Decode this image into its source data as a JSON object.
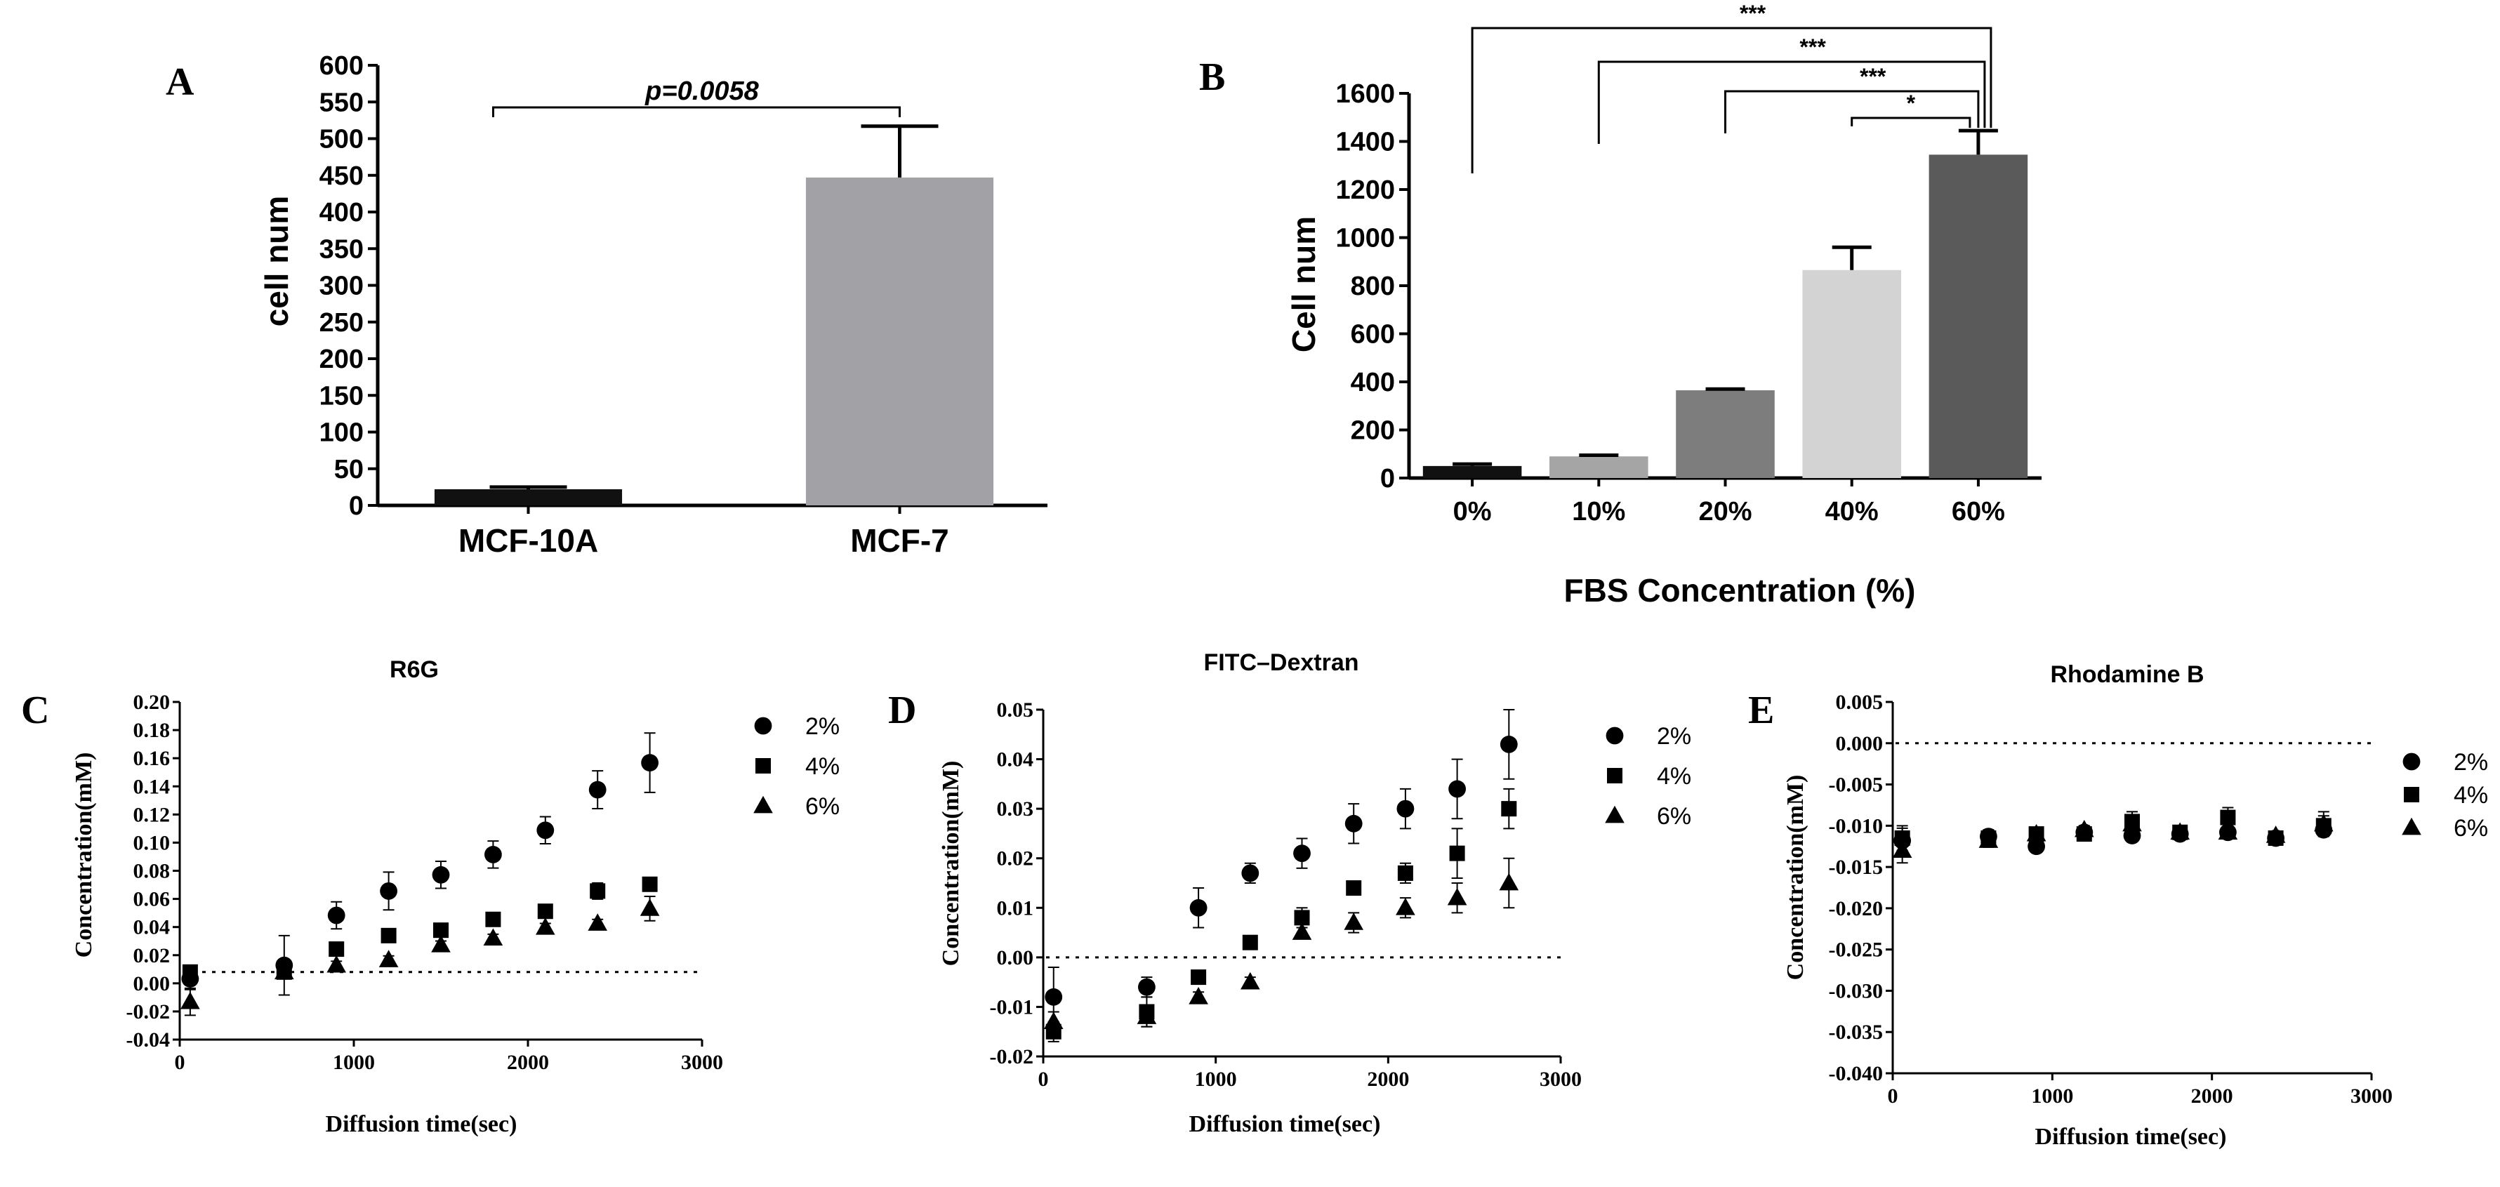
{
  "chart_data": [
    {
      "id": "A",
      "panel_label": "A",
      "type": "bar",
      "title": "",
      "xlabel": "",
      "ylabel": "cell num",
      "categories": [
        "MCF-10A",
        "MCF-7"
      ],
      "values": [
        22,
        447
      ],
      "errors": [
        3,
        70
      ],
      "colors": [
        "#111111",
        "#a2a1a6"
      ],
      "ylim": [
        0,
        600
      ],
      "yticks": [
        0,
        50,
        100,
        150,
        200,
        250,
        300,
        350,
        400,
        450,
        500,
        550,
        600
      ],
      "annotation": "p=0.0058"
    },
    {
      "id": "B",
      "panel_label": "B",
      "type": "bar",
      "title": "",
      "xlabel": "FBS Concentration (%)",
      "ylabel": "Cell num",
      "categories": [
        "0%",
        "10%",
        "20%",
        "40%",
        "60%"
      ],
      "values": [
        50,
        90,
        365,
        865,
        1345
      ],
      "errors": [
        8,
        5,
        5,
        95,
        100
      ],
      "colors": [
        "#111111",
        "#a5a5a5",
        "#7d7d7d",
        "#d3d3d3",
        "#5a5a5a"
      ],
      "ylim": [
        0,
        1600
      ],
      "yticks": [
        0,
        200,
        400,
        600,
        800,
        1000,
        1200,
        1400,
        1600
      ],
      "significance": [
        {
          "from": "0%",
          "to": "60%",
          "label": "***"
        },
        {
          "from": "10%",
          "to": "60%",
          "label": "***"
        },
        {
          "from": "20%",
          "to": "60%",
          "label": "***"
        },
        {
          "from": "40%",
          "to": "60%",
          "label": "*"
        }
      ]
    },
    {
      "id": "C",
      "panel_label": "C",
      "type": "scatter",
      "title": "R6G",
      "xlabel": "Diffusion time(sec)",
      "ylabel": "Concentration(mM)",
      "xlim": [
        0,
        3000
      ],
      "ylim": [
        -0.05,
        0.2
      ],
      "xticks": [
        0,
        1000,
        2000,
        3000
      ],
      "yticks": [
        "0.20",
        "0.18",
        "0.16",
        "0.14",
        "0.12",
        "0.10",
        "0.08",
        "0.06",
        "0.04",
        "0.02",
        "0.00",
        "-0.02",
        "-0.04"
      ],
      "x": [
        60,
        600,
        900,
        1200,
        1500,
        1800,
        2100,
        2400,
        2700
      ],
      "series": [
        {
          "name": "2%",
          "marker": "circle",
          "values": [
            -0.005,
            0.005,
            0.042,
            0.06,
            0.072,
            0.087,
            0.105,
            0.135,
            0.155
          ],
          "errors": [
            0.008,
            0.022,
            0.01,
            0.014,
            0.01,
            0.01,
            0.01,
            0.014,
            0.022
          ]
        },
        {
          "name": "4%",
          "marker": "square",
          "values": [
            0.0,
            0.0,
            0.017,
            0.027,
            0.031,
            0.039,
            0.045,
            0.06,
            0.065
          ],
          "errors": [
            0.004,
            0.005,
            0.004,
            0.004,
            0.004,
            0.004,
            0.004,
            0.006,
            0.005
          ]
        },
        {
          "name": "6%",
          "marker": "triangle",
          "values": [
            -0.022,
            0.0,
            0.005,
            0.009,
            0.02,
            0.025,
            0.033,
            0.036,
            0.047
          ],
          "errors": [
            0.01,
            0.003,
            0.003,
            0.003,
            0.003,
            0.003,
            0.003,
            0.003,
            0.009
          ]
        }
      ]
    },
    {
      "id": "D",
      "panel_label": "D",
      "type": "scatter",
      "title": "FITC–Dextran",
      "xlabel": "Diffusion time(sec)",
      "ylabel": "Concentration(mM)",
      "xlim": [
        0,
        3000
      ],
      "ylim": [
        -0.02,
        0.05
      ],
      "xticks": [
        0,
        1000,
        2000,
        3000
      ],
      "yticks": [
        "0.05",
        "0.04",
        "0.03",
        "0.02",
        "0.01",
        "0.00",
        "-0.01",
        "-0.02"
      ],
      "x": [
        60,
        600,
        900,
        1200,
        1500,
        1800,
        2100,
        2400,
        2700
      ],
      "series": [
        {
          "name": "2%",
          "marker": "circle",
          "values": [
            -0.008,
            -0.006,
            0.01,
            0.017,
            0.021,
            0.027,
            0.03,
            0.034,
            0.043
          ],
          "errors": [
            0.006,
            0.002,
            0.004,
            0.002,
            0.003,
            0.004,
            0.004,
            0.006,
            0.007
          ]
        },
        {
          "name": "4%",
          "marker": "square",
          "values": [
            -0.015,
            -0.011,
            -0.004,
            0.003,
            0.008,
            0.014,
            0.017,
            0.021,
            0.03
          ],
          "errors": [
            0.002,
            0.003,
            0.001,
            0.001,
            0.002,
            0.001,
            0.002,
            0.005,
            0.004
          ]
        },
        {
          "name": "6%",
          "marker": "triangle",
          "values": [
            -0.013,
            -0.012,
            -0.008,
            -0.005,
            0.005,
            0.007,
            0.01,
            0.012,
            0.015
          ],
          "errors": [
            0.002,
            0.002,
            0.001,
            0.001,
            0.001,
            0.002,
            0.002,
            0.003,
            0.005
          ]
        }
      ]
    },
    {
      "id": "E",
      "panel_label": "E",
      "type": "scatter",
      "title": "Rhodamine B",
      "xlabel": "Diffusion time(sec)",
      "ylabel": "Concentration(mM)",
      "xlim": [
        0,
        3000
      ],
      "ylim": [
        -0.04,
        0.005
      ],
      "xticks": [
        0,
        1000,
        2000,
        3000
      ],
      "yticks": [
        "0.005",
        "0.000",
        "-0.005",
        "-0.010",
        "-0.015",
        "-0.020",
        "-0.025",
        "-0.030",
        "-0.035",
        "-0.040"
      ],
      "x": [
        60,
        600,
        900,
        1200,
        1500,
        1800,
        2100,
        2400,
        2700
      ],
      "series": [
        {
          "name": "2%",
          "marker": "circle",
          "values": [
            -0.0118,
            -0.0113,
            -0.0125,
            -0.0108,
            -0.0112,
            -0.011,
            -0.0108,
            -0.0115,
            -0.0105
          ],
          "errors": [
            0.0015,
            0.0008,
            0.0005,
            0.0005,
            0.0005,
            0.0005,
            0.0005,
            0.0005,
            0.0006
          ]
        },
        {
          "name": "4%",
          "marker": "square",
          "values": [
            -0.0115,
            -0.0115,
            -0.011,
            -0.011,
            -0.0095,
            -0.0108,
            -0.009,
            -0.0115,
            -0.01
          ],
          "errors": [
            0.0015,
            0.0008,
            0.0005,
            0.0005,
            0.0012,
            0.0005,
            0.0012,
            0.0005,
            0.0012
          ]
        },
        {
          "name": "6%",
          "marker": "triangle",
          "values": [
            -0.013,
            -0.0118,
            -0.011,
            -0.0105,
            -0.0098,
            -0.0108,
            -0.0108,
            -0.0112,
            -0.0098
          ],
          "errors": [
            0.0015,
            0.0008,
            0.0005,
            0.0005,
            0.0008,
            0.0005,
            0.0005,
            0.0005,
            0.0015
          ]
        }
      ]
    }
  ],
  "reference_line": "0.00"
}
